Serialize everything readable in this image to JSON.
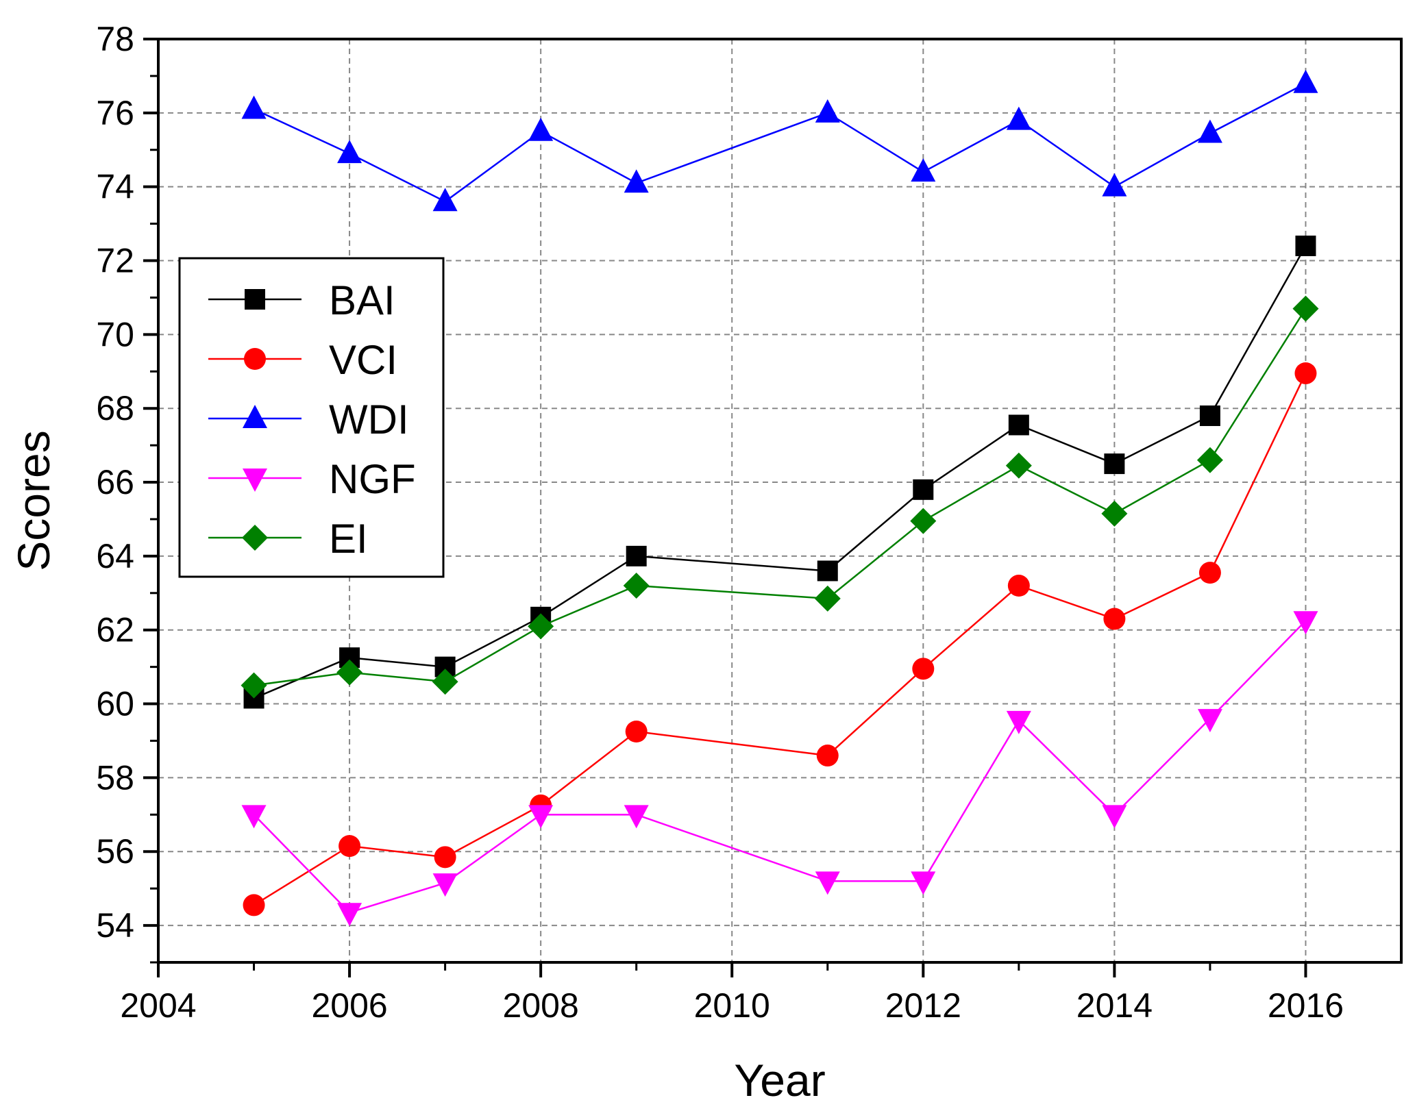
{
  "chart_data": {
    "type": "line",
    "title": "",
    "xlabel": "Year",
    "ylabel": "Scores",
    "xlim": [
      2004,
      2017
    ],
    "ylim": [
      53,
      78
    ],
    "xticks": [
      2004,
      2006,
      2008,
      2010,
      2012,
      2014,
      2016
    ],
    "xtick_labels": [
      "2004",
      "2006",
      "2008",
      "2010",
      "2012",
      "2014",
      "2016"
    ],
    "yticks": [
      54,
      56,
      58,
      60,
      62,
      64,
      66,
      68,
      70,
      72,
      74,
      76,
      78
    ],
    "ytick_labels": [
      "54",
      "56",
      "58",
      "60",
      "62",
      "64",
      "66",
      "68",
      "70",
      "72",
      "74",
      "76",
      "78"
    ],
    "grid": true,
    "legend_position": "center-left",
    "series": [
      {
        "name": "BAI",
        "color": "#000000",
        "marker": "square",
        "x": [
          2005,
          2006,
          2007,
          2008,
          2009,
          2011,
          2012,
          2013,
          2014,
          2015,
          2016
        ],
        "y": [
          60.15,
          61.25,
          61.0,
          62.35,
          64.0,
          63.6,
          65.8,
          67.55,
          66.5,
          67.8,
          72.4
        ]
      },
      {
        "name": "VCI",
        "color": "#ff0000",
        "marker": "circle",
        "x": [
          2005,
          2006,
          2007,
          2008,
          2009,
          2011,
          2012,
          2013,
          2014,
          2015,
          2016
        ],
        "y": [
          54.55,
          56.15,
          55.85,
          57.25,
          59.25,
          58.6,
          60.95,
          63.2,
          62.3,
          63.55,
          68.95
        ]
      },
      {
        "name": "WDI",
        "color": "#0000ff",
        "marker": "triangle-up",
        "x": [
          2005,
          2006,
          2007,
          2008,
          2009,
          2011,
          2012,
          2013,
          2014,
          2015,
          2016
        ],
        "y": [
          76.1,
          74.9,
          73.6,
          75.5,
          74.1,
          76.0,
          74.4,
          75.8,
          74.0,
          75.45,
          76.8
        ]
      },
      {
        "name": "NGF",
        "color": "#ff00ff",
        "marker": "triangle-down",
        "x": [
          2005,
          2006,
          2007,
          2008,
          2009,
          2011,
          2012,
          2013,
          2014,
          2015,
          2016
        ],
        "y": [
          57.0,
          54.35,
          55.15,
          57.0,
          57.0,
          55.2,
          55.2,
          59.55,
          57.0,
          59.6,
          62.25
        ]
      },
      {
        "name": "EI",
        "color": "#008000",
        "marker": "diamond",
        "x": [
          2005,
          2006,
          2007,
          2008,
          2009,
          2011,
          2012,
          2013,
          2014,
          2015,
          2016
        ],
        "y": [
          60.5,
          60.85,
          60.6,
          62.1,
          63.2,
          62.85,
          64.95,
          66.45,
          65.15,
          66.6,
          70.7
        ]
      }
    ]
  }
}
